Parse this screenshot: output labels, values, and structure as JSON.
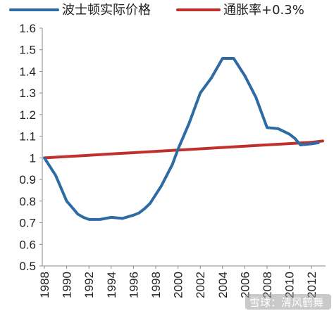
{
  "chart_data": {
    "type": "line",
    "title": "",
    "xlabel": "",
    "ylabel": "",
    "xlim": [
      1988,
      2013
    ],
    "ylim": [
      0.5,
      1.6
    ],
    "yticks": [
      "0.5",
      "0.6",
      "0.7",
      "0.8",
      "0.9",
      "1",
      "1.1",
      "1.2",
      "1.3",
      "1.4",
      "1.5",
      "1.6"
    ],
    "xticks": [
      "1988",
      "1990",
      "1992",
      "1994",
      "1996",
      "1998",
      "2000",
      "2002",
      "2004",
      "2006",
      "2008",
      "2010",
      "2012"
    ],
    "grid": false,
    "legend_position": "top",
    "series": [
      {
        "name": "波士顿实际价格",
        "color": "#2e6aa3",
        "x": [
          1988,
          1988.5,
          1989,
          1989.5,
          1990,
          1990.5,
          1991,
          1991.5,
          1992,
          1993,
          1994,
          1995,
          1996,
          1996.5,
          1997,
          1997.5,
          1998,
          1998.5,
          1999,
          1999.5,
          2000,
          2001,
          2002,
          2003,
          2004,
          2004.5,
          2005,
          2006,
          2007,
          2008,
          2009,
          2010,
          2010.5,
          2011,
          2012,
          2012.6
        ],
        "y": [
          1.0,
          0.96,
          0.92,
          0.86,
          0.8,
          0.77,
          0.74,
          0.725,
          0.715,
          0.715,
          0.725,
          0.72,
          0.735,
          0.745,
          0.765,
          0.79,
          0.83,
          0.87,
          0.92,
          0.97,
          1.04,
          1.16,
          1.3,
          1.37,
          1.46,
          1.46,
          1.46,
          1.38,
          1.28,
          1.14,
          1.135,
          1.11,
          1.09,
          1.06,
          1.065,
          1.07
        ]
      },
      {
        "name": "通胀率+0.3%",
        "color": "#c0302c",
        "x": [
          1988,
          1990,
          1992,
          1994,
          1996,
          1998,
          2000,
          2002,
          2004,
          2006,
          2008,
          2010,
          2012,
          2013
        ],
        "y": [
          1.0,
          1.006,
          1.012,
          1.018,
          1.024,
          1.03,
          1.036,
          1.042,
          1.048,
          1.054,
          1.06,
          1.066,
          1.072,
          1.078
        ]
      }
    ]
  },
  "watermark": "雪球：清风鹤舞"
}
